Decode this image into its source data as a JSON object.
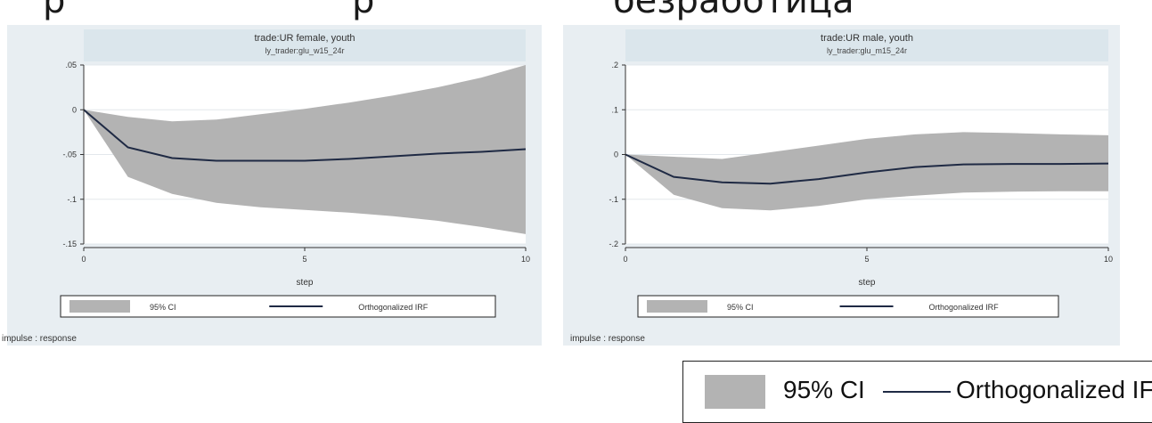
{
  "header": {
    "left_fragment": "р",
    "mid_fragment": "р",
    "right_fragment": "безработица"
  },
  "panels": [
    {
      "title": "trade:UR female, youth",
      "subtitle": "ly_trader:glu_w15_24r",
      "xlabel": "step",
      "xticks": [
        "0",
        "5",
        "10"
      ],
      "yticks": [
        ".05",
        "0",
        "-.05",
        "-.1",
        "-.15"
      ],
      "legend": {
        "ci": "95% CI",
        "irf": "Orthogonalized IRF"
      },
      "note": "impulse : response"
    },
    {
      "title": "trade:UR male, youth",
      "subtitle": "ly_trader:glu_m15_24r",
      "xlabel": "step",
      "xticks": [
        "0",
        "5",
        "10"
      ],
      "yticks": [
        ".2",
        ".1",
        "0",
        "-.1",
        "-.2"
      ],
      "legend": {
        "ci": "95% CI",
        "irf": "Orthogonalized IRF"
      },
      "note": "impulse : response"
    }
  ],
  "big_legend": {
    "ci": "95% CI",
    "irf": "Orthogonalized IF"
  },
  "colors": {
    "ci_fill": "#b3b3b3",
    "irf_line": "#1f2a44",
    "title_band": "#dbe6ec",
    "panel_bg": "#e8eef2"
  },
  "chart_data": [
    {
      "type": "area",
      "title": "trade:UR female, youth",
      "subtitle": "ly_trader:glu_w15_24r",
      "xlabel": "step",
      "ylabel": "",
      "xlim": [
        0,
        10
      ],
      "ylim": [
        -0.15,
        0.05
      ],
      "x": [
        0,
        1,
        2,
        3,
        4,
        5,
        6,
        7,
        8,
        9,
        10
      ],
      "series": [
        {
          "name": "95% CI",
          "lower": [
            0,
            -0.075,
            -0.094,
            -0.104,
            -0.109,
            -0.112,
            -0.115,
            -0.119,
            -0.124,
            -0.131,
            -0.139
          ],
          "upper": [
            0,
            -0.008,
            -0.013,
            -0.011,
            -0.005,
            0.001,
            0.008,
            0.016,
            0.025,
            0.036,
            0.05
          ]
        },
        {
          "name": "Orthogonalized IRF",
          "values": [
            0,
            -0.042,
            -0.054,
            -0.057,
            -0.057,
            -0.057,
            -0.055,
            -0.052,
            -0.049,
            -0.047,
            -0.044
          ]
        }
      ]
    },
    {
      "type": "area",
      "title": "trade:UR male, youth",
      "subtitle": "ly_trader:glu_m15_24r",
      "xlabel": "step",
      "ylabel": "",
      "xlim": [
        0,
        10
      ],
      "ylim": [
        -0.2,
        0.2
      ],
      "x": [
        0,
        1,
        2,
        3,
        4,
        5,
        6,
        7,
        8,
        9,
        10
      ],
      "series": [
        {
          "name": "95% CI",
          "lower": [
            0,
            -0.09,
            -0.12,
            -0.125,
            -0.115,
            -0.1,
            -0.092,
            -0.085,
            -0.083,
            -0.082,
            -0.082
          ],
          "upper": [
            0,
            -0.005,
            -0.01,
            0.005,
            0.02,
            0.035,
            0.045,
            0.05,
            0.048,
            0.045,
            0.043
          ]
        },
        {
          "name": "Orthogonalized IRF",
          "values": [
            0,
            -0.05,
            -0.062,
            -0.065,
            -0.055,
            -0.04,
            -0.028,
            -0.022,
            -0.021,
            -0.021,
            -0.02
          ]
        }
      ]
    }
  ]
}
